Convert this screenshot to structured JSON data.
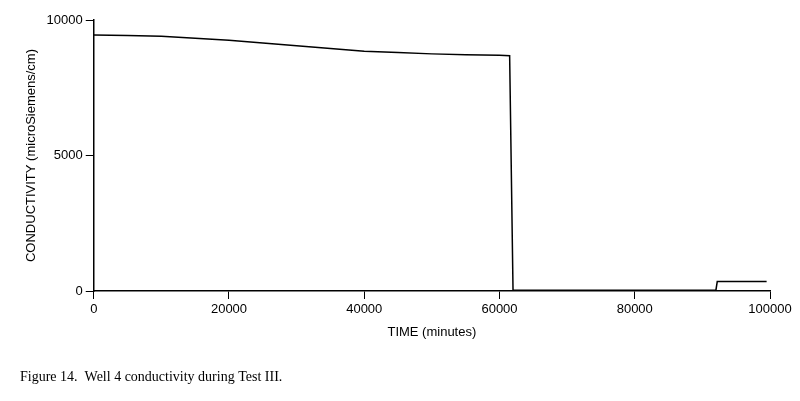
{
  "chart_data": {
    "type": "line",
    "title": "Figure 14.  Well 4 conductivity during Test III.",
    "x_label": "TIME (minutes)",
    "y_label": "CONDUCTIVITY (microSiemens/cm)",
    "x": [
      0,
      5000,
      10000,
      15000,
      20000,
      25000,
      30000,
      35000,
      40000,
      45000,
      50000,
      55000,
      60000,
      61500,
      62000,
      70000,
      80000,
      92000,
      92200,
      99500
    ],
    "values": [
      9450,
      9430,
      9400,
      9330,
      9250,
      9150,
      9050,
      8950,
      8850,
      8800,
      8750,
      8720,
      8700,
      8680,
      30,
      30,
      30,
      30,
      350,
      350
    ],
    "color": "#000000",
    "xlim": [
      0,
      100000
    ],
    "xticks": [
      0,
      20000,
      40000,
      60000,
      80000,
      100000
    ],
    "ylim": [
      0,
      10000
    ],
    "yticks": [
      0,
      5000,
      10000
    ],
    "grid": false
  }
}
